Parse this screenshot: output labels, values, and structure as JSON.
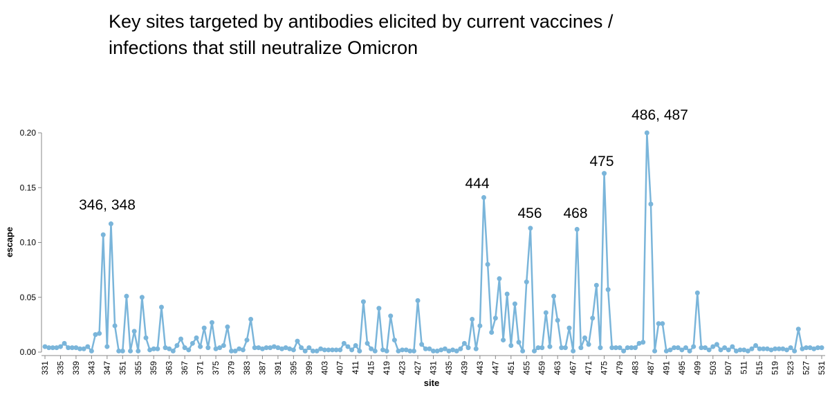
{
  "chart_data": {
    "type": "line",
    "title": [
      "Key sites targeted by antibodies elicited by current vaccines /",
      "infections that still neutralize Omicron"
    ],
    "x_label": "site",
    "y_label": "escape",
    "color": "#7ab5da",
    "xlim": [
      331,
      531
    ],
    "xticks": [
      331,
      335,
      339,
      343,
      347,
      351,
      355,
      359,
      363,
      367,
      371,
      375,
      379,
      383,
      387,
      391,
      395,
      399,
      403,
      407,
      411,
      415,
      419,
      423,
      427,
      431,
      435,
      439,
      443,
      447,
      451,
      455,
      459,
      463,
      467,
      471,
      475,
      479,
      483,
      487,
      491,
      495,
      499,
      503,
      507,
      511,
      515,
      519,
      523,
      527,
      531
    ],
    "ylim": [
      0,
      0.2
    ],
    "yticks": [
      {
        "value": 0,
        "label": "0.00"
      },
      {
        "value": 0.05,
        "label": "0.05"
      },
      {
        "value": 0.1,
        "label": "0.10"
      },
      {
        "value": 0.15,
        "label": "0.15"
      },
      {
        "value": 0.2,
        "label": "0.20"
      }
    ],
    "annotations": [
      "346, 348",
      "444",
      "456",
      "468",
      "475",
      "486, 487"
    ],
    "x": [
      331,
      332,
      333,
      334,
      335,
      336,
      337,
      338,
      339,
      340,
      341,
      342,
      343,
      344,
      345,
      346,
      347,
      348,
      349,
      350,
      351,
      352,
      353,
      354,
      355,
      356,
      357,
      358,
      359,
      360,
      361,
      362,
      363,
      364,
      365,
      366,
      367,
      368,
      369,
      370,
      371,
      372,
      373,
      374,
      375,
      376,
      377,
      378,
      379,
      380,
      381,
      382,
      383,
      384,
      385,
      386,
      387,
      388,
      389,
      390,
      391,
      392,
      393,
      394,
      395,
      396,
      397,
      398,
      399,
      400,
      401,
      402,
      403,
      404,
      405,
      406,
      407,
      408,
      409,
      410,
      411,
      412,
      413,
      414,
      415,
      416,
      417,
      418,
      419,
      420,
      421,
      422,
      423,
      424,
      425,
      426,
      427,
      428,
      429,
      430,
      431,
      432,
      433,
      434,
      435,
      436,
      437,
      438,
      439,
      440,
      441,
      442,
      443,
      444,
      445,
      446,
      447,
      448,
      449,
      450,
      451,
      452,
      453,
      454,
      455,
      456,
      457,
      458,
      459,
      460,
      461,
      462,
      463,
      464,
      465,
      466,
      467,
      468,
      469,
      470,
      471,
      472,
      473,
      474,
      475,
      476,
      477,
      478,
      479,
      480,
      481,
      482,
      483,
      484,
      485,
      486,
      487,
      488,
      489,
      490,
      491,
      492,
      493,
      494,
      495,
      496,
      497,
      498,
      499,
      500,
      501,
      502,
      503,
      504,
      505,
      506,
      507,
      508,
      509,
      510,
      511,
      512,
      513,
      514,
      515,
      516,
      517,
      518,
      519,
      520,
      521,
      522,
      523,
      524,
      525,
      526,
      527,
      528,
      529,
      530,
      531
    ],
    "values": [
      0.005,
      0.004,
      0.004,
      0.004,
      0.005,
      0.008,
      0.004,
      0.004,
      0.004,
      0.003,
      0.003,
      0.005,
      0.001,
      0.016,
      0.017,
      0.107,
      0.005,
      0.117,
      0.024,
      0.001,
      0.001,
      0.051,
      0.001,
      0.019,
      0.001,
      0.05,
      0.013,
      0.002,
      0.003,
      0.003,
      0.041,
      0.004,
      0.003,
      0.001,
      0.006,
      0.012,
      0.004,
      0.002,
      0.008,
      0.013,
      0.005,
      0.022,
      0.004,
      0.027,
      0.003,
      0.004,
      0.006,
      0.023,
      0.001,
      0.001,
      0.003,
      0.002,
      0.011,
      0.03,
      0.004,
      0.004,
      0.003,
      0.004,
      0.004,
      0.005,
      0.004,
      0.003,
      0.004,
      0.003,
      0.002,
      0.01,
      0.004,
      0.001,
      0.004,
      0.001,
      0.001,
      0.003,
      0.002,
      0.002,
      0.002,
      0.002,
      0.002,
      0.008,
      0.005,
      0.002,
      0.006,
      0.001,
      0.046,
      0.008,
      0.003,
      0.001,
      0.04,
      0.002,
      0.001,
      0.033,
      0.011,
      0.001,
      0.002,
      0.002,
      0.001,
      0.001,
      0.047,
      0.007,
      0.003,
      0.003,
      0.001,
      0.001,
      0.002,
      0.003,
      0.001,
      0.002,
      0.001,
      0.003,
      0.008,
      0.004,
      0.03,
      0.003,
      0.024,
      0.141,
      0.08,
      0.018,
      0.031,
      0.067,
      0.011,
      0.053,
      0.006,
      0.044,
      0.009,
      0.001,
      0.064,
      0.113,
      0.001,
      0.004,
      0.004,
      0.036,
      0.005,
      0.051,
      0.029,
      0.004,
      0.004,
      0.022,
      0.001,
      0.112,
      0.004,
      0.013,
      0.007,
      0.031,
      0.061,
      0.004,
      0.163,
      0.057,
      0.004,
      0.004,
      0.004,
      0.001,
      0.004,
      0.004,
      0.004,
      0.008,
      0.009,
      0.2,
      0.135,
      0.001,
      0.026,
      0.026,
      0.001,
      0.002,
      0.004,
      0.004,
      0.002,
      0.004,
      0.001,
      0.005,
      0.054,
      0.004,
      0.004,
      0.002,
      0.005,
      0.007,
      0.002,
      0.004,
      0.002,
      0.005,
      0.001,
      0.002,
      0.002,
      0.001,
      0.003,
      0.006,
      0.003,
      0.003,
      0.003,
      0.002,
      0.003,
      0.003,
      0.003,
      0.002,
      0.004,
      0.001,
      0.021,
      0.003,
      0.004,
      0.004,
      0.003,
      0.004,
      0.004
    ]
  }
}
